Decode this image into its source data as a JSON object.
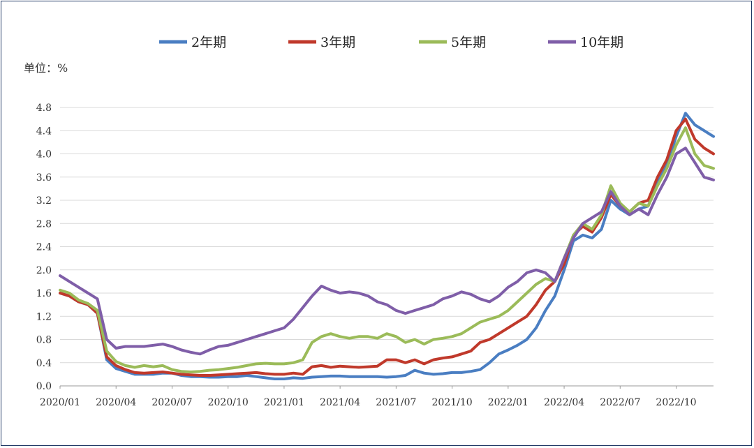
{
  "chart_data": {
    "type": "line",
    "unit_label": "单位：%",
    "x_tick_labels": [
      "2020/01",
      "2020/04",
      "2020/07",
      "2020/10",
      "2021/01",
      "2021/04",
      "2021/07",
      "2021/10",
      "2022/01",
      "2022/04",
      "2022/07",
      "2022/10"
    ],
    "x_range": [
      "2020/01",
      "2022/12"
    ],
    "y_ticks": [
      "0.0",
      "0.4",
      "0.8",
      "1.2",
      "1.6",
      "2.0",
      "2.4",
      "2.8",
      "3.2",
      "3.6",
      "4.0",
      "4.4",
      "4.8"
    ],
    "ylim": [
      0,
      4.8
    ],
    "grid": true,
    "legend_position": "top",
    "x": [
      0.0,
      0.5,
      1.0,
      1.5,
      2.0,
      2.5,
      3.0,
      3.5,
      4.0,
      4.5,
      5.0,
      5.5,
      6.0,
      6.5,
      7.0,
      7.5,
      8.0,
      8.5,
      9.0,
      9.5,
      10.0,
      10.5,
      11.0,
      11.5,
      12.0,
      12.5,
      13.0,
      13.5,
      14.0,
      14.5,
      15.0,
      15.5,
      16.0,
      16.5,
      17.0,
      17.5,
      18.0,
      18.5,
      19.0,
      19.5,
      20.0,
      20.5,
      21.0,
      21.5,
      22.0,
      22.5,
      23.0,
      23.5,
      24.0,
      24.5,
      25.0,
      25.5,
      26.0,
      26.5,
      27.0,
      27.5,
      28.0,
      28.5,
      29.0,
      29.5,
      30.0,
      30.5,
      31.0,
      31.5,
      32.0,
      32.5,
      33.0,
      33.5,
      34.0,
      34.5,
      35.0
    ],
    "series": [
      {
        "name": "2年期",
        "color": "#4a7ec2",
        "values": [
          1.6,
          1.55,
          1.45,
          1.4,
          1.25,
          0.45,
          0.3,
          0.25,
          0.2,
          0.2,
          0.2,
          0.22,
          0.22,
          0.18,
          0.16,
          0.16,
          0.15,
          0.15,
          0.16,
          0.16,
          0.18,
          0.16,
          0.14,
          0.12,
          0.12,
          0.14,
          0.13,
          0.15,
          0.16,
          0.17,
          0.17,
          0.16,
          0.16,
          0.16,
          0.16,
          0.15,
          0.16,
          0.18,
          0.27,
          0.22,
          0.2,
          0.21,
          0.23,
          0.23,
          0.25,
          0.28,
          0.4,
          0.55,
          0.62,
          0.7,
          0.8,
          1.0,
          1.3,
          1.55,
          2.0,
          2.5,
          2.6,
          2.55,
          2.7,
          3.2,
          3.05,
          2.95,
          3.05,
          3.1,
          3.5,
          3.8,
          4.3,
          4.7,
          4.5,
          4.4,
          4.3
        ]
      },
      {
        "name": "3年期",
        "color": "#c0392b",
        "values": [
          1.6,
          1.55,
          1.45,
          1.4,
          1.25,
          0.5,
          0.35,
          0.28,
          0.23,
          0.22,
          0.23,
          0.24,
          0.22,
          0.2,
          0.19,
          0.18,
          0.18,
          0.19,
          0.2,
          0.21,
          0.22,
          0.23,
          0.21,
          0.2,
          0.2,
          0.22,
          0.2,
          0.33,
          0.35,
          0.32,
          0.34,
          0.33,
          0.32,
          0.33,
          0.34,
          0.45,
          0.45,
          0.4,
          0.45,
          0.38,
          0.45,
          0.48,
          0.5,
          0.55,
          0.6,
          0.75,
          0.8,
          0.9,
          1.0,
          1.1,
          1.2,
          1.4,
          1.65,
          1.8,
          2.1,
          2.6,
          2.75,
          2.65,
          2.9,
          3.3,
          3.1,
          3.0,
          3.15,
          3.2,
          3.6,
          3.9,
          4.4,
          4.6,
          4.25,
          4.1,
          4.0
        ]
      },
      {
        "name": "5年期",
        "color": "#9bbb59",
        "values": [
          1.65,
          1.6,
          1.48,
          1.42,
          1.3,
          0.6,
          0.42,
          0.35,
          0.32,
          0.35,
          0.33,
          0.35,
          0.28,
          0.25,
          0.24,
          0.25,
          0.27,
          0.28,
          0.3,
          0.32,
          0.35,
          0.38,
          0.39,
          0.38,
          0.38,
          0.4,
          0.45,
          0.75,
          0.85,
          0.9,
          0.85,
          0.82,
          0.85,
          0.85,
          0.82,
          0.9,
          0.85,
          0.75,
          0.8,
          0.72,
          0.8,
          0.82,
          0.85,
          0.9,
          1.0,
          1.1,
          1.15,
          1.2,
          1.3,
          1.45,
          1.6,
          1.75,
          1.85,
          1.8,
          2.2,
          2.6,
          2.8,
          2.7,
          2.95,
          3.45,
          3.15,
          3.0,
          3.15,
          3.1,
          3.45,
          3.75,
          4.15,
          4.45,
          4.0,
          3.8,
          3.75
        ]
      },
      {
        "name": "10年期",
        "color": "#7f5ea8",
        "values": [
          1.9,
          1.8,
          1.7,
          1.6,
          1.5,
          0.8,
          0.65,
          0.68,
          0.68,
          0.68,
          0.7,
          0.72,
          0.68,
          0.62,
          0.58,
          0.55,
          0.62,
          0.68,
          0.7,
          0.75,
          0.8,
          0.85,
          0.9,
          0.95,
          1.0,
          1.15,
          1.35,
          1.55,
          1.72,
          1.65,
          1.6,
          1.62,
          1.6,
          1.55,
          1.45,
          1.4,
          1.3,
          1.25,
          1.3,
          1.35,
          1.4,
          1.5,
          1.55,
          1.62,
          1.58,
          1.5,
          1.45,
          1.55,
          1.7,
          1.8,
          1.95,
          2.0,
          1.95,
          1.8,
          2.2,
          2.55,
          2.8,
          2.9,
          3.0,
          3.35,
          3.1,
          2.95,
          3.05,
          2.95,
          3.3,
          3.6,
          4.0,
          4.1,
          3.85,
          3.6,
          3.55
        ]
      }
    ]
  }
}
